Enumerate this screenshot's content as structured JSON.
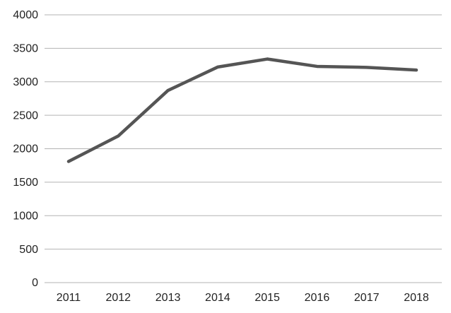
{
  "chart_data": {
    "type": "line",
    "title": "",
    "xlabel": "",
    "ylabel": "",
    "categories": [
      "2011",
      "2012",
      "2013",
      "2014",
      "2015",
      "2016",
      "2017",
      "2018"
    ],
    "series": [
      {
        "values": [
          1810,
          2190,
          2870,
          3220,
          3340,
          3230,
          3215,
          3175
        ]
      }
    ],
    "ylim": [
      0,
      4000
    ],
    "yticks": [
      0,
      500,
      1000,
      1500,
      2000,
      2500,
      3000,
      3500,
      4000
    ],
    "grid": "horizontal",
    "legend": "none",
    "colors": {
      "line": "#555555",
      "grid": "#b3b3b3",
      "text": "#222222"
    }
  }
}
